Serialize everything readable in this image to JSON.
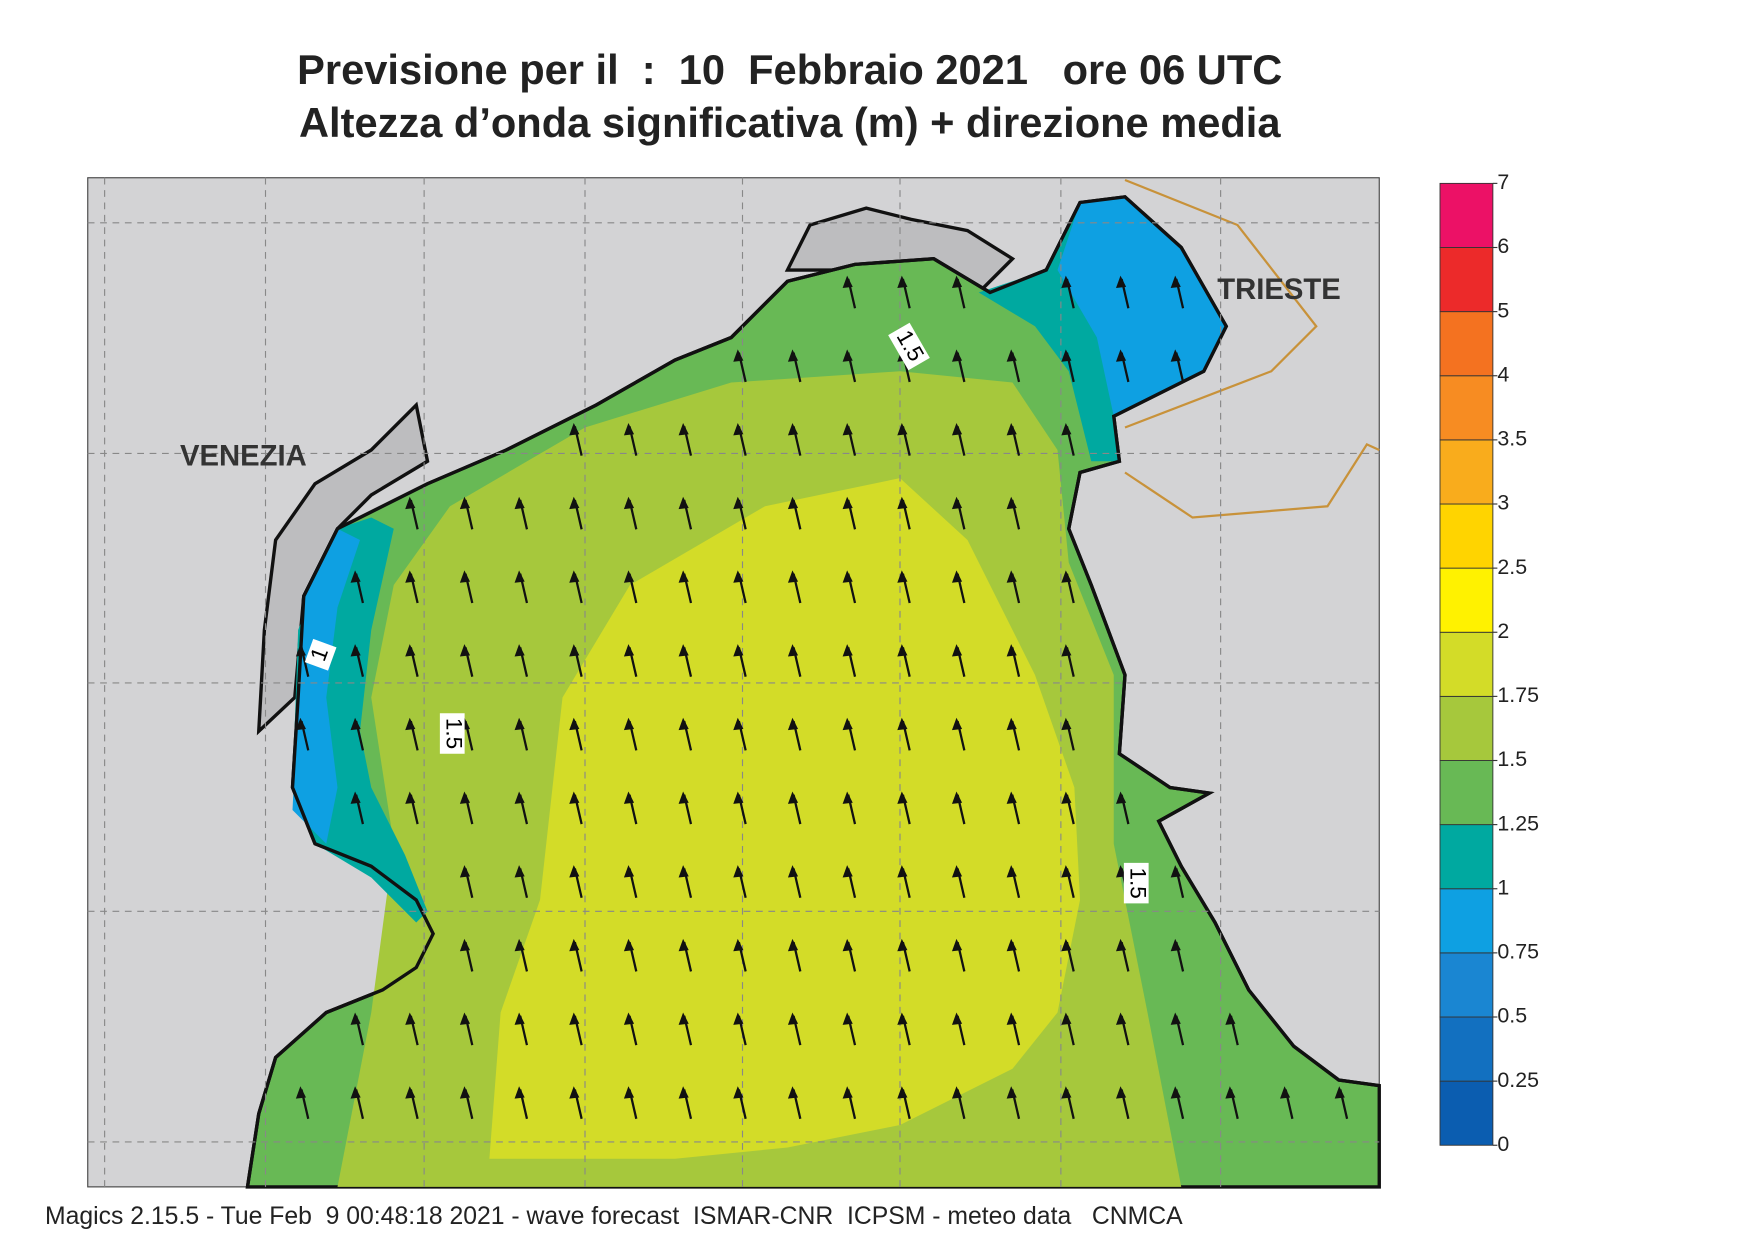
{
  "title": [
    "Previsione per il  :  10  Febbraio 2021   ore 06 UTC",
    "Altezza d’onda significativa (m) + direzione media"
  ],
  "places": [
    "VENEZIA",
    "TRIESTE"
  ],
  "contour_labels": [
    "1.5",
    "1.5",
    "1",
    "1.5"
  ],
  "colorbar": {
    "ticks": [
      0,
      0.25,
      0.5,
      0.75,
      1,
      1.25,
      1.5,
      1.75,
      2,
      2.5,
      3,
      3.5,
      4,
      5,
      6,
      7
    ],
    "colors": [
      "#0b5db0",
      "#1270c0",
      "#1a86d2",
      "#0ea0e2",
      "#00a9a0",
      "#68b955",
      "#a6c83c",
      "#d3dc28",
      "#fff200",
      "#ffd400",
      "#f9ac1c",
      "#f78c22",
      "#f47220",
      "#ec2a2a",
      "#ec1166"
    ]
  },
  "footer": "Magics 2.15.5 - Tue Feb  9 00:48:18 2021 - wave forecast  ISMAR-CNR  ICPSM - meteo data   CNMCA"
}
